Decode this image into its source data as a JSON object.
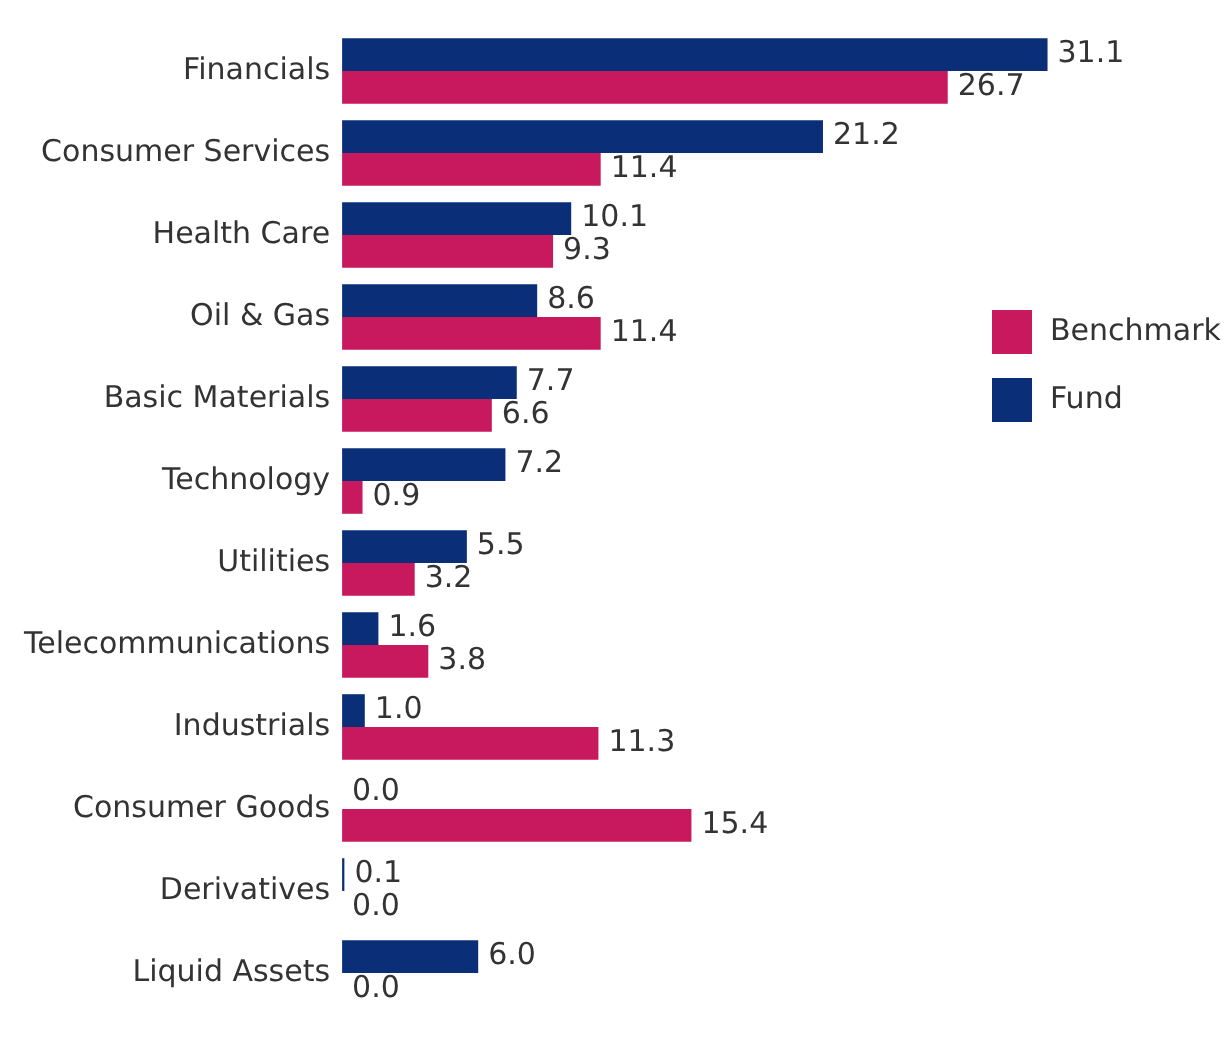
{
  "chart_data": {
    "type": "bar",
    "orientation": "horizontal",
    "categories": [
      "Financials",
      "Consumer Services",
      "Health Care",
      "Oil & Gas",
      "Basic Materials",
      "Technology",
      "Utilities",
      "Telecommunications",
      "Industrials",
      "Consumer Goods",
      "Derivatives",
      "Liquid Assets"
    ],
    "series": [
      {
        "name": "Fund",
        "color": "#0b2e78",
        "values": [
          31.1,
          21.2,
          10.1,
          8.6,
          7.7,
          7.2,
          5.5,
          1.6,
          1.0,
          0.0,
          0.1,
          6.0
        ],
        "value_labels": [
          "31.1",
          "21.2",
          "10.1",
          "8.6",
          "7.7",
          "7.2",
          "5.5",
          "1.6",
          "1.0",
          "0.0",
          "0.1",
          "6.0"
        ]
      },
      {
        "name": "Benchmark",
        "color": "#c8185e",
        "values": [
          26.7,
          11.4,
          9.3,
          11.4,
          6.6,
          0.9,
          3.2,
          3.8,
          11.3,
          15.4,
          0.0,
          0.0
        ],
        "value_labels": [
          "26.7",
          "11.4",
          "9.3",
          "11.4",
          "6.6",
          "0.9",
          "3.2",
          "3.8",
          "11.3",
          "15.4",
          "0.0",
          "0.0"
        ]
      }
    ],
    "legend": "right",
    "grid": false
  }
}
